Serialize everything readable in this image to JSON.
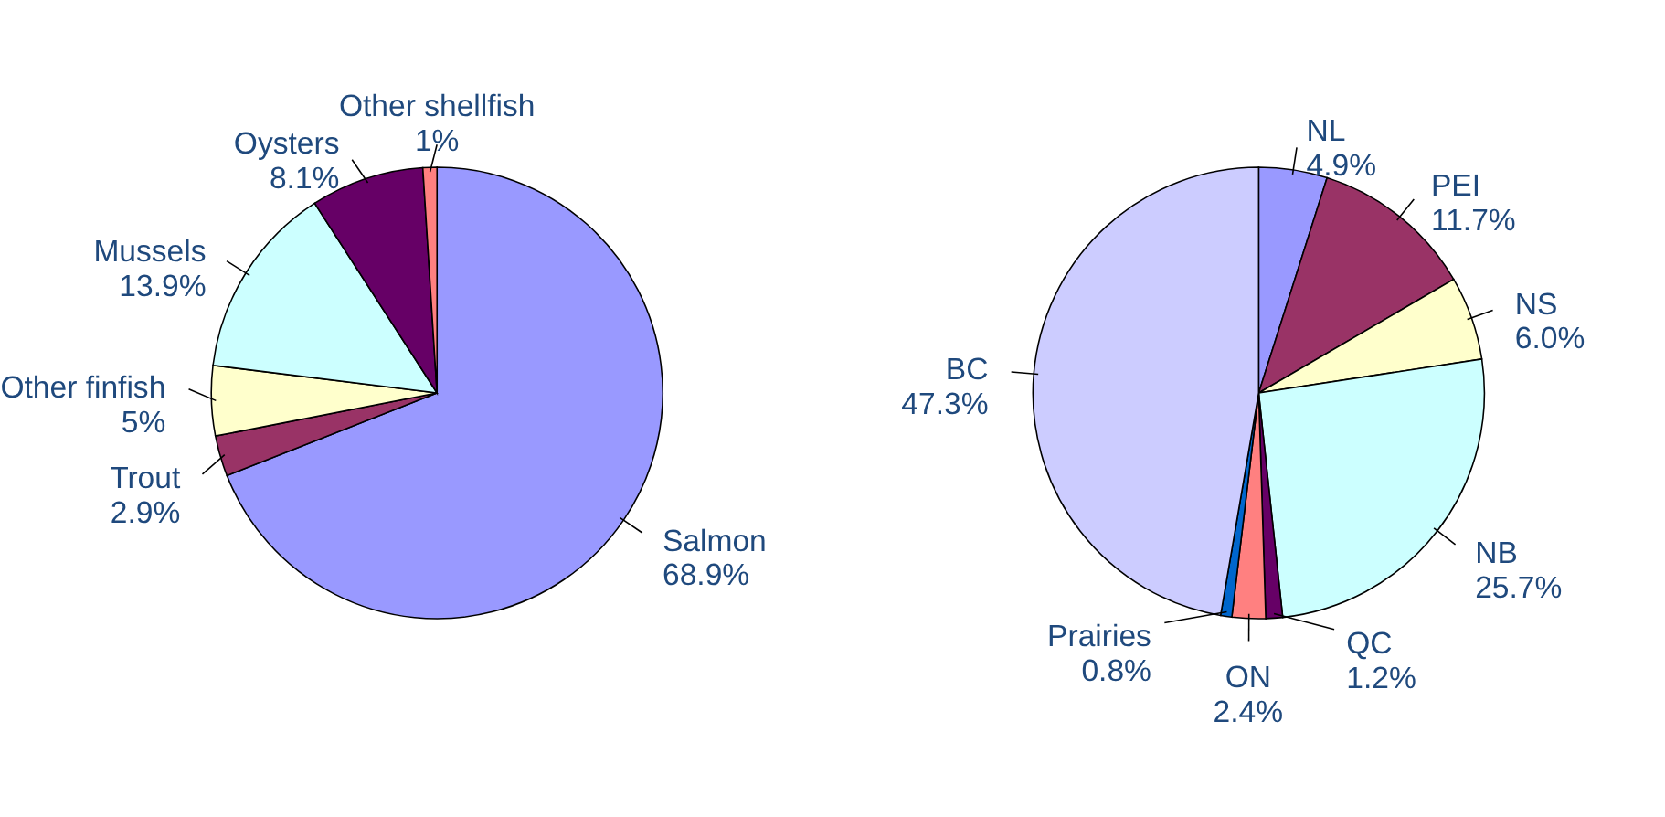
{
  "chart_data": [
    {
      "type": "pie",
      "categories": [
        "Salmon",
        "Trout",
        "Other finfish",
        "Mussels",
        "Oysters",
        "Other shellfish"
      ],
      "values": [
        68.9,
        2.9,
        5,
        13.9,
        8.1,
        1
      ],
      "value_labels": [
        "68.9%",
        "2.9%",
        "5%",
        "13.9%",
        "8.1%",
        "1%"
      ],
      "colors": [
        "#9999ff",
        "#993366",
        "#ffffcc",
        "#ccffff",
        "#660066",
        "#ff8080"
      ]
    },
    {
      "type": "pie",
      "categories": [
        "NL",
        "PEI",
        "NS",
        "NB",
        "QC",
        "ON",
        "Prairies",
        "BC"
      ],
      "values": [
        4.9,
        11.7,
        6.0,
        25.7,
        1.2,
        2.4,
        0.8,
        47.3
      ],
      "value_labels": [
        "4.9%",
        "11.7%",
        "6.0%",
        "25.7%",
        "1.2%",
        "2.4%",
        "0.8%",
        "47.3%"
      ],
      "colors": [
        "#9999ff",
        "#993366",
        "#ffffcc",
        "#ccffff",
        "#660066",
        "#ff8080",
        "#0066cc",
        "#ccccff"
      ]
    }
  ]
}
